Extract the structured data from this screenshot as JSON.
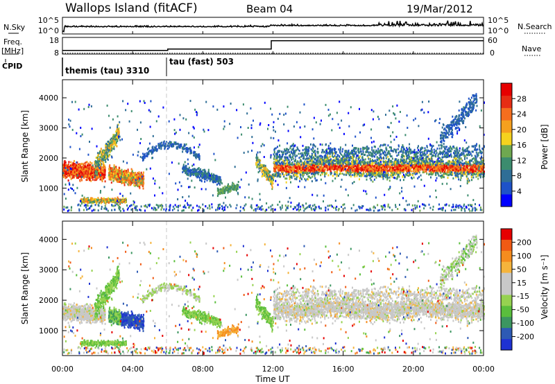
{
  "header": {
    "title": "Wallops Island (fitACF)",
    "beam": "Beam 04",
    "date": "19/Mar/2012"
  },
  "strip_labels": {
    "nsky": "N.Sky",
    "freq": "Freq.",
    "freq_unit": "[MHz]",
    "cpid": "CPID",
    "nsearch": "N.Search",
    "nave": "Nave"
  },
  "cpid_labels": [
    "themis (tau) 3310",
    "tau (fast) 503"
  ],
  "colors": {
    "power": [
      "#0000ff",
      "#1e52c8",
      "#2f6e96",
      "#3c8c6e",
      "#6ea850",
      "#f5d21e",
      "#f5a01e",
      "#f56e1e",
      "#e62d14",
      "#e60000"
    ],
    "velocity": [
      "#e60000",
      "#f05a14",
      "#f58c1e",
      "#f5b43c",
      "#c8c8c8",
      "#c8c8c8",
      "#96d250",
      "#5abe3c",
      "#3c9660",
      "#2d5ab4",
      "#1e32d2"
    ],
    "ground": "#969696"
  },
  "chart_data": [
    {
      "type": "line",
      "name": "nsky-nsearch",
      "x_range_hours": [
        0,
        24
      ],
      "left_ticks": [
        "10^5",
        "10^0"
      ],
      "right_ticks": [
        "10^5",
        "10^0"
      ]
    },
    {
      "type": "line",
      "name": "freq-nave",
      "x_range_hours": [
        0,
        24
      ],
      "left_ticks": [
        "18",
        "8"
      ],
      "right_ticks": [
        "60",
        "0"
      ],
      "freq_mhz": [
        {
          "x": 0,
          "y": 10.2
        },
        {
          "x": 6.0,
          "y": 10.2
        },
        {
          "x": 6.0,
          "y": 11.0
        },
        {
          "x": 11.9,
          "y": 11.0
        },
        {
          "x": 11.9,
          "y": 16.0
        },
        {
          "x": 24,
          "y": 16.0
        }
      ],
      "nave": [
        {
          "x": 0,
          "y": 3
        },
        {
          "x": 24,
          "y": 3
        }
      ],
      "cpid_changes": [
        {
          "x": 0,
          "label_index": 0
        },
        {
          "x": 6.0,
          "label_index": 1
        }
      ]
    },
    {
      "type": "heatmap",
      "name": "power",
      "ylabel": "Slant Range [km]",
      "y_ticks": [
        1000,
        2000,
        3000,
        4000
      ],
      "ylim": [
        180,
        4600
      ],
      "colorbar_label": "Power [dB]",
      "colorbar_ticks": [
        "4",
        "8",
        "12",
        "16",
        "20",
        "24",
        "28"
      ]
    },
    {
      "type": "heatmap",
      "name": "velocity",
      "ylabel": "Slant Range [km]",
      "y_ticks": [
        1000,
        2000,
        3000,
        4000
      ],
      "ylim": [
        180,
        4600
      ],
      "colorbar_label": "Velocity [m s⁻¹]",
      "colorbar_ticks": [
        "200",
        "100",
        "50",
        "15",
        "-15",
        "-50",
        "-100",
        "-200"
      ]
    }
  ],
  "x_axis": {
    "label": "Time UT",
    "ticks": [
      "00:00",
      "04:00",
      "08:00",
      "12:00",
      "16:00",
      "20:00",
      "00:00"
    ]
  }
}
